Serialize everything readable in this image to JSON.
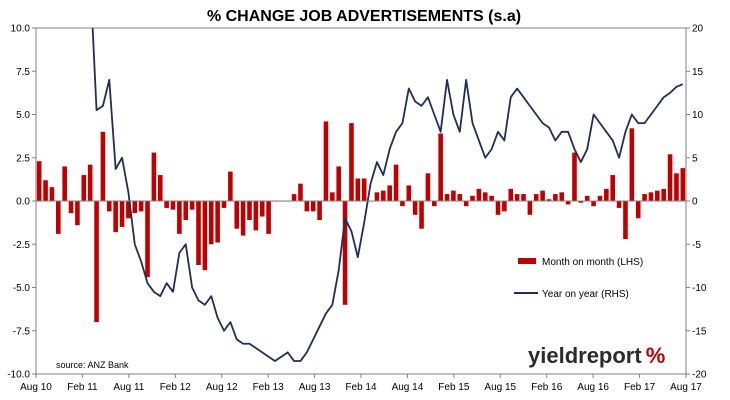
{
  "chart_data": {
    "type": "bar+line",
    "title": "% CHANGE JOB ADVERTISEMENTS (s.a)",
    "source_note": "source: ANZ Bank",
    "logo": {
      "word": "yieldreport",
      "symbol": "%"
    },
    "x_tick_labels": [
      "Aug 10",
      "Feb 11",
      "Aug 11",
      "Feb 12",
      "Aug 12",
      "Feb 13",
      "Aug 13",
      "Feb 14",
      "Aug 14",
      "Feb 15",
      "Aug 15",
      "Feb 16",
      "Aug 16",
      "Feb 17",
      "Aug 17"
    ],
    "y_left": {
      "ylim": [
        -10,
        10
      ],
      "ticks": [
        -10,
        -7.5,
        -5,
        -2.5,
        0,
        2.5,
        5,
        7.5,
        10
      ],
      "tick_labels": [
        "-10.0",
        "-7.5",
        "-5.0",
        "-2.5",
        "0.0",
        "2.5",
        "5.0",
        "7.5",
        "10.0"
      ]
    },
    "y_right": {
      "ylim": [
        -20,
        20
      ],
      "ticks": [
        -20,
        -15,
        -10,
        -5,
        0,
        5,
        10,
        15,
        20
      ],
      "tick_labels": [
        "-20",
        "-15",
        "-10",
        "-5",
        "0",
        "5",
        "10",
        "15",
        "20"
      ]
    },
    "legend_position": "lower-right",
    "colors": {
      "bars": "#c00000",
      "line": "#1f2d5a",
      "logo_text": "#2b2b2b",
      "logo_symbol": "#c00000"
    },
    "series": [
      {
        "name": "Month on month (LHS)",
        "axis": "left",
        "type": "bar",
        "values": [
          2.3,
          1.2,
          0.8,
          -1.9,
          2.0,
          -0.7,
          -1.4,
          1.5,
          2.1,
          -7.0,
          4.0,
          -0.6,
          -1.8,
          -1.5,
          -1.0,
          -0.7,
          -0.6,
          -4.4,
          2.8,
          1.5,
          -0.4,
          -0.5,
          -1.9,
          -1.1,
          -0.5,
          -3.7,
          -4.0,
          -2.5,
          -2.4,
          -0.4,
          1.7,
          -1.6,
          -2.0,
          -1.1,
          -1.7,
          -0.9,
          -1.9,
          0.0,
          0.0,
          0.0,
          0.4,
          1.0,
          -0.6,
          -0.6,
          -1.1,
          4.6,
          0.5,
          2.0,
          -6.0,
          4.5,
          1.3,
          1.3,
          0.0,
          0.5,
          0.6,
          0.9,
          2.1,
          -0.3,
          0.9,
          -0.8,
          -1.6,
          1.6,
          -0.3,
          3.9,
          0.4,
          0.6,
          0.4,
          -0.3,
          0.3,
          0.7,
          0.5,
          0.3,
          -0.8,
          -0.6,
          0.7,
          0.4,
          0.4,
          -0.8,
          0.4,
          0.6,
          0.1,
          0.4,
          0.5,
          -0.2,
          2.8,
          -0.1,
          0.3,
          -0.3,
          0.3,
          0.7,
          1.5,
          -0.4,
          -2.2,
          4.2,
          -1.0,
          0.4,
          0.5,
          0.6,
          0.7,
          2.7,
          1.6,
          1.9
        ]
      },
      {
        "name": "Year on year (RHS)",
        "axis": "right",
        "type": "line",
        "values": [
          null,
          null,
          null,
          null,
          null,
          null,
          null,
          null,
          26,
          10.5,
          11,
          14,
          3.7,
          5,
          1,
          -5,
          -7,
          -9.5,
          -10.5,
          -11,
          -9.5,
          -10.5,
          -6,
          -5,
          -10,
          -11.5,
          -12,
          -11,
          -13.5,
          -15,
          -14,
          -16,
          -16.5,
          -16.5,
          -17,
          -17.5,
          -18,
          -18.5,
          -18,
          -17.5,
          -18.5,
          -18.5,
          -17.5,
          -16,
          -14.5,
          -13,
          -12,
          -8,
          -2,
          -3.5,
          -6.5,
          -2.5,
          2,
          4.5,
          3,
          6,
          8,
          9,
          13,
          11.5,
          11,
          12,
          10,
          8,
          14,
          10,
          8,
          14,
          9,
          7,
          5,
          6,
          8,
          7,
          12,
          13,
          12,
          11,
          10,
          9,
          8.5,
          7,
          8,
          8,
          6,
          4.5,
          6,
          10,
          9,
          8,
          7,
          5,
          8,
          10,
          9,
          9,
          10,
          11,
          12,
          12.5,
          13.2,
          13.5
        ]
      }
    ]
  }
}
